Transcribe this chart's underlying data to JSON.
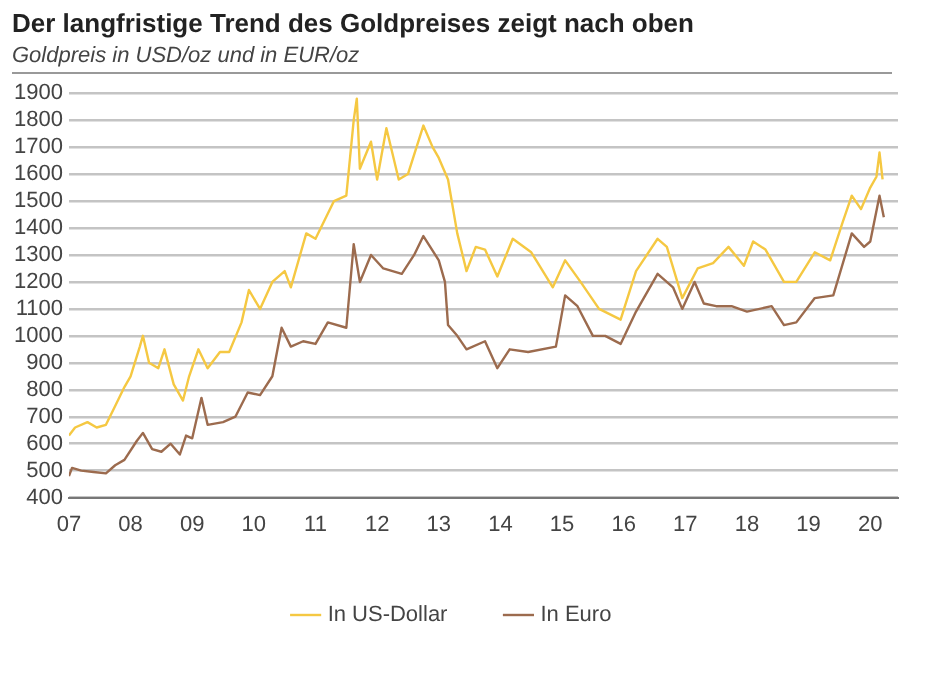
{
  "chart_data": {
    "type": "line",
    "title": "Der langfristige Trend des Goldpreises zeigt nach oben",
    "subtitle": "Goldpreis in USD/oz und in EUR/oz",
    "xlim": [
      2007,
      2020.45
    ],
    "xticks": [
      {
        "value": 2007,
        "label": "07"
      },
      {
        "value": 2008,
        "label": "08"
      },
      {
        "value": 2009,
        "label": "09"
      },
      {
        "value": 2010,
        "label": "10"
      },
      {
        "value": 2011,
        "label": "11"
      },
      {
        "value": 2012,
        "label": "12"
      },
      {
        "value": 2013,
        "label": "13"
      },
      {
        "value": 2014,
        "label": "14"
      },
      {
        "value": 2015,
        "label": "15"
      },
      {
        "value": 2016,
        "label": "16"
      },
      {
        "value": 2017,
        "label": "17"
      },
      {
        "value": 2018,
        "label": "18"
      },
      {
        "value": 2019,
        "label": "19"
      },
      {
        "value": 2020,
        "label": "20"
      }
    ],
    "ylim": [
      400,
      1900
    ],
    "yticks": [
      400,
      500,
      600,
      700,
      800,
      900,
      1000,
      1100,
      1200,
      1300,
      1400,
      1500,
      1600,
      1700,
      1800,
      1900
    ],
    "grid": "y",
    "legend": "bottom",
    "marker": "none",
    "line_style": "solid",
    "series": [
      {
        "name": "In US-Dollar",
        "color": "#f5c842",
        "x": [
          2007.0,
          2007.1,
          2007.3,
          2007.45,
          2007.6,
          2007.75,
          2007.9,
          2008.0,
          2008.15,
          2008.2,
          2008.3,
          2008.45,
          2008.55,
          2008.7,
          2008.85,
          2008.95,
          2009.1,
          2009.25,
          2009.45,
          2009.6,
          2009.8,
          2009.92,
          2010.1,
          2010.3,
          2010.5,
          2010.6,
          2010.85,
          2011.0,
          2011.3,
          2011.5,
          2011.62,
          2011.67,
          2011.72,
          2011.9,
          2012.0,
          2012.15,
          2012.35,
          2012.5,
          2012.75,
          2012.9,
          2013.0,
          2013.15,
          2013.3,
          2013.45,
          2013.6,
          2013.75,
          2013.95,
          2014.2,
          2014.5,
          2014.85,
          2015.05,
          2015.3,
          2015.6,
          2015.95,
          2016.2,
          2016.55,
          2016.7,
          2016.95,
          2017.2,
          2017.45,
          2017.7,
          2017.95,
          2018.1,
          2018.3,
          2018.6,
          2018.8,
          2019.1,
          2019.35,
          2019.55,
          2019.7,
          2019.85,
          2020.0,
          2020.1,
          2020.15,
          2020.2
        ],
        "values": [
          630,
          660,
          680,
          660,
          670,
          740,
          810,
          850,
          960,
          1000,
          900,
          880,
          950,
          820,
          760,
          850,
          950,
          880,
          940,
          940,
          1050,
          1170,
          1100,
          1200,
          1240,
          1180,
          1380,
          1360,
          1500,
          1520,
          1800,
          1880,
          1620,
          1720,
          1580,
          1770,
          1580,
          1600,
          1780,
          1700,
          1660,
          1580,
          1380,
          1240,
          1330,
          1320,
          1220,
          1360,
          1310,
          1180,
          1280,
          1200,
          1100,
          1060,
          1240,
          1360,
          1330,
          1140,
          1250,
          1270,
          1330,
          1260,
          1350,
          1320,
          1200,
          1200,
          1310,
          1280,
          1420,
          1520,
          1470,
          1550,
          1590,
          1680,
          1580
        ]
      },
      {
        "name": "In Euro",
        "color": "#9c6b4e",
        "x": [
          2007.0,
          2007.05,
          2007.2,
          2007.4,
          2007.6,
          2007.75,
          2007.9,
          2008.1,
          2008.2,
          2008.35,
          2008.5,
          2008.65,
          2008.8,
          2008.9,
          2009.0,
          2009.15,
          2009.25,
          2009.5,
          2009.7,
          2009.9,
          2010.1,
          2010.3,
          2010.45,
          2010.6,
          2010.8,
          2011.0,
          2011.2,
          2011.5,
          2011.62,
          2011.72,
          2011.9,
          2012.1,
          2012.4,
          2012.6,
          2012.75,
          2013.0,
          2013.1,
          2013.15,
          2013.3,
          2013.45,
          2013.75,
          2013.95,
          2014.15,
          2014.45,
          2014.9,
          2015.05,
          2015.25,
          2015.5,
          2015.7,
          2015.95,
          2016.2,
          2016.55,
          2016.8,
          2016.95,
          2017.15,
          2017.3,
          2017.5,
          2017.75,
          2018.0,
          2018.4,
          2018.6,
          2018.8,
          2019.1,
          2019.4,
          2019.7,
          2019.9,
          2020.0,
          2020.15,
          2020.22
        ],
        "values": [
          480,
          510,
          500,
          495,
          490,
          520,
          540,
          610,
          640,
          580,
          570,
          600,
          560,
          630,
          620,
          770,
          670,
          680,
          700,
          790,
          780,
          850,
          1030,
          960,
          980,
          970,
          1050,
          1030,
          1340,
          1200,
          1300,
          1250,
          1230,
          1300,
          1370,
          1280,
          1200,
          1040,
          1000,
          950,
          980,
          880,
          950,
          940,
          960,
          1150,
          1110,
          1000,
          1000,
          970,
          1090,
          1230,
          1180,
          1100,
          1200,
          1120,
          1110,
          1110,
          1090,
          1110,
          1040,
          1050,
          1140,
          1150,
          1380,
          1330,
          1350,
          1520,
          1440
        ]
      }
    ]
  }
}
